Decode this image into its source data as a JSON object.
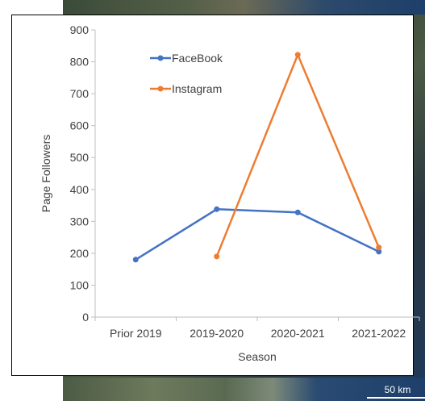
{
  "background": {
    "scale_label": "50 km"
  },
  "chart_data": {
    "type": "line",
    "title": "",
    "xlabel": "Season",
    "ylabel": "Page Followers",
    "categories": [
      "Prior 2019",
      "2019-2020",
      "2020-2021",
      "2021-2022"
    ],
    "ylim": [
      0,
      900
    ],
    "yticks": [
      0,
      100,
      200,
      300,
      400,
      500,
      600,
      700,
      800,
      900
    ],
    "series": [
      {
        "name": "FaceBook",
        "color": "#4472c4",
        "values": [
          180,
          338,
          328,
          205
        ]
      },
      {
        "name": "Instagram",
        "color": "#ed7d31",
        "values": [
          null,
          190,
          822,
          218
        ]
      }
    ],
    "legend": {
      "position": "upper-left"
    },
    "grid": false
  }
}
